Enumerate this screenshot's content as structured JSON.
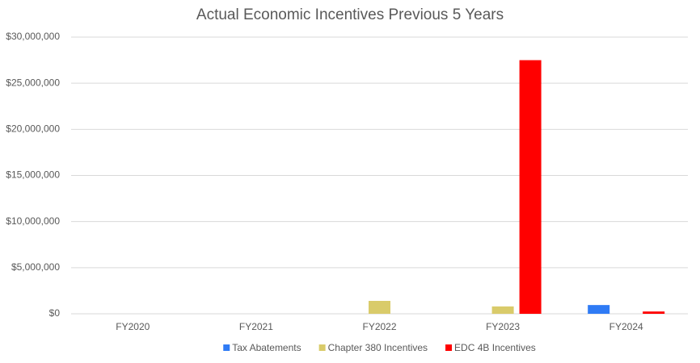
{
  "chart_data": {
    "type": "bar",
    "title": "Actual Economic Incentives Previous 5 Years",
    "categories": [
      "FY2020",
      "FY2021",
      "FY2022",
      "FY2023",
      "FY2024"
    ],
    "series": [
      {
        "name": "Tax Abatements",
        "color": "#2f7bf5",
        "values": [
          0,
          0,
          0,
          0,
          950000
        ]
      },
      {
        "name": "Chapter 380 Incentives",
        "color": "#d9cb6a",
        "values": [
          0,
          0,
          1400000,
          800000,
          0
        ]
      },
      {
        "name": "EDC 4B Incentives",
        "color": "#ff0000",
        "values": [
          0,
          0,
          0,
          27500000,
          250000
        ]
      }
    ],
    "ylim": [
      0,
      30000000
    ],
    "yticks": [
      {
        "value": 0,
        "label": "$0"
      },
      {
        "value": 5000000,
        "label": "$5,000,000"
      },
      {
        "value": 10000000,
        "label": "$10,000,000"
      },
      {
        "value": 15000000,
        "label": "$15,000,000"
      },
      {
        "value": 20000000,
        "label": "$20,000,000"
      },
      {
        "value": 25000000,
        "label": "$25,000,000"
      },
      {
        "value": 30000000,
        "label": "$30,000,000"
      }
    ],
    "grid": true,
    "legend": "bottom"
  }
}
